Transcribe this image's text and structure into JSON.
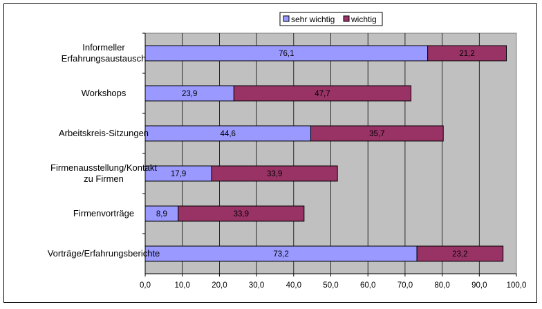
{
  "chart_data": {
    "type": "bar",
    "orientation": "horizontal",
    "stacked": true,
    "title": "",
    "xlabel": "",
    "ylabel": "",
    "xlim": [
      0,
      100
    ],
    "x_ticks": [
      "0,0",
      "10,0",
      "20,0",
      "30,0",
      "40,0",
      "50,0",
      "60,0",
      "70,0",
      "80,0",
      "90,0",
      "100,0"
    ],
    "grid": true,
    "legend_position": "top",
    "categories": [
      "Informeller\nErfahrungsaustausch",
      "Workshops",
      "Arbeitskreis-Sitzungen",
      "Firmenausstellung/Kontakt\nzu Firmen",
      "Firmenvorträge",
      "Vorträge/Erfahrungsberichte"
    ],
    "series": [
      {
        "name": "sehr wichtig",
        "color": "#9999ff",
        "values": [
          76.1,
          23.9,
          44.6,
          17.9,
          8.9,
          73.2
        ],
        "labels": [
          "76,1",
          "23,9",
          "44,6",
          "17,9",
          "8,9",
          "73,2"
        ]
      },
      {
        "name": "wichtig",
        "color": "#993366",
        "values": [
          21.2,
          47.7,
          35.7,
          33.9,
          33.9,
          23.2
        ],
        "labels": [
          "21,2",
          "47,7",
          "35,7",
          "33,9",
          "33,9",
          "23,2"
        ]
      }
    ],
    "plot_background": "#c0c0c0"
  }
}
